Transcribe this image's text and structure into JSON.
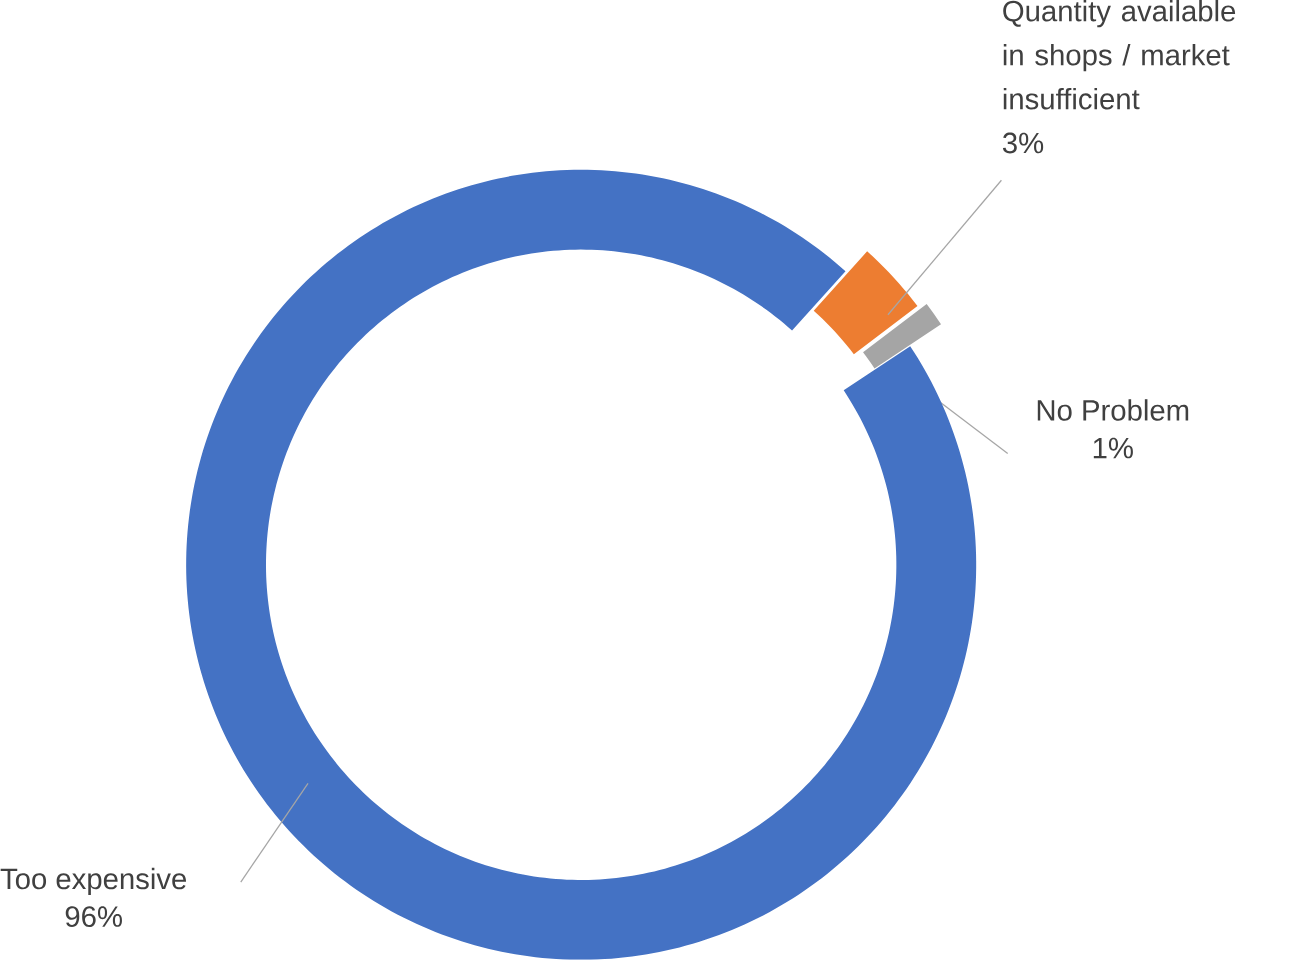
{
  "chart_data": {
    "type": "donut",
    "categories": [
      "Quantity available in shops / market insufficient",
      "No Problem",
      "Too expensive"
    ],
    "values": [
      3,
      1,
      96
    ],
    "colors": [
      "#ed7d31",
      "#a5a5a5",
      "#4472c4"
    ],
    "value_labels": [
      "3%",
      "1%",
      "96%"
    ]
  }
}
